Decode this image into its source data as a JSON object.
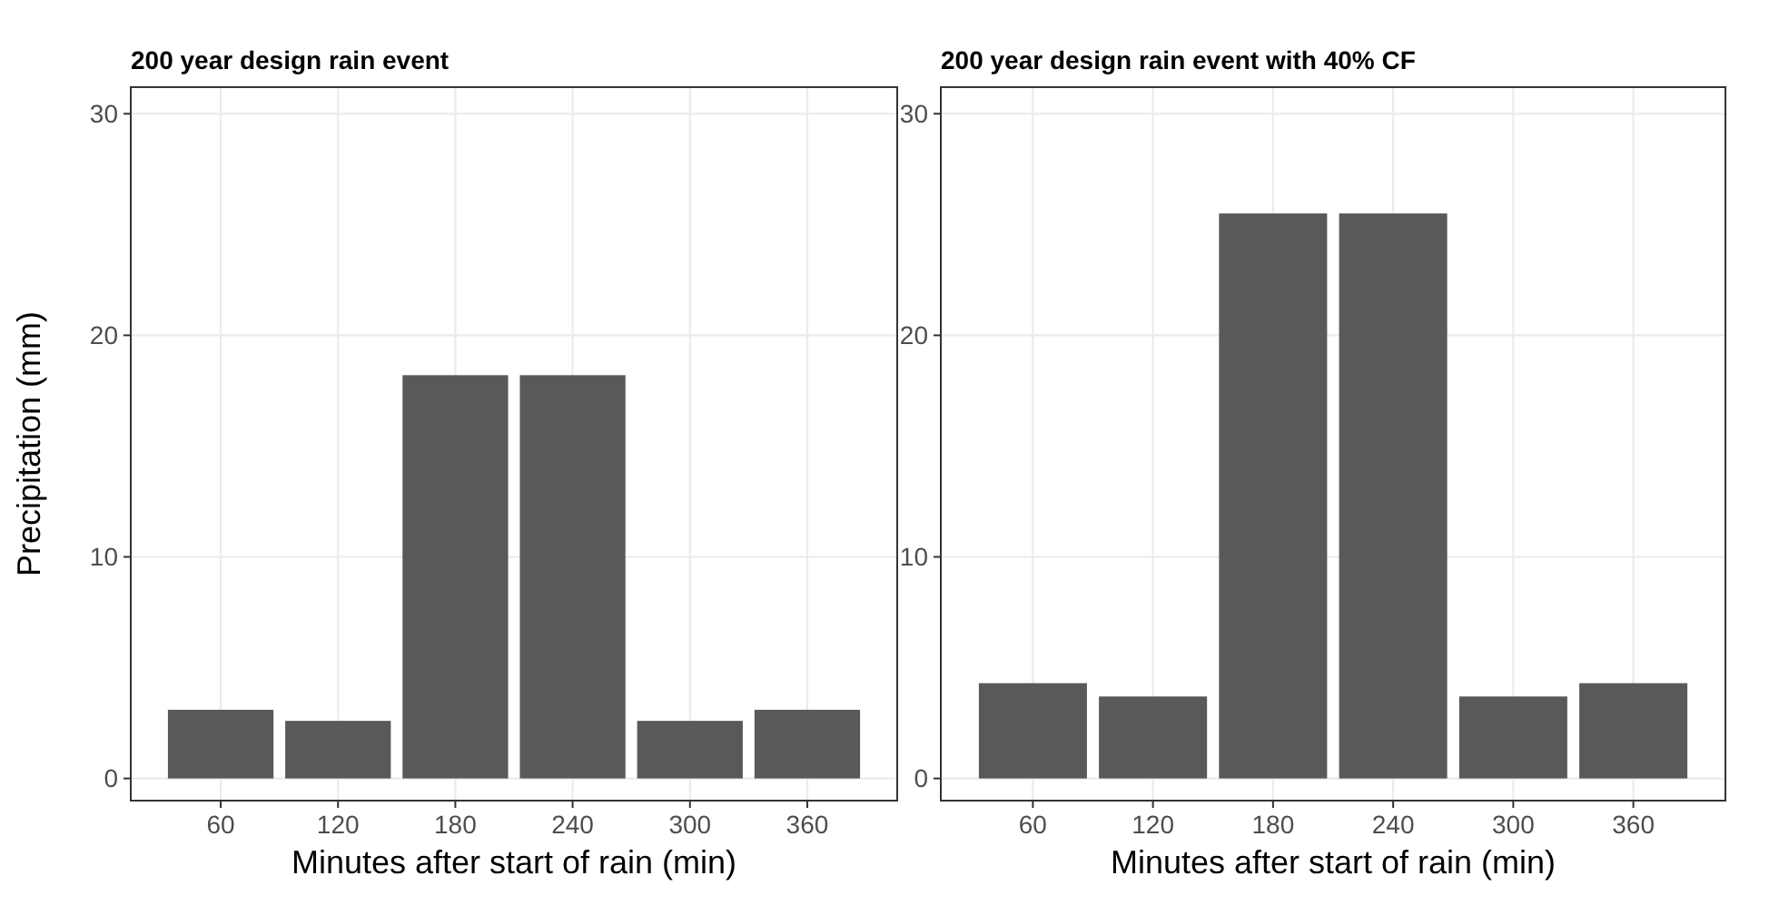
{
  "chart_data": [
    {
      "type": "bar",
      "title": "200 year design rain event",
      "xlabel": "Minutes after start of rain (min)",
      "ylabel": "Precipitation (mm)",
      "x": [
        60,
        120,
        180,
        240,
        300,
        360
      ],
      "values": [
        3.1,
        2.6,
        18.2,
        18.2,
        2.6,
        3.1
      ],
      "color": "#595959",
      "xlim": [
        14,
        406
      ],
      "xticks": [
        60,
        120,
        180,
        240,
        300,
        360
      ],
      "ylim": [
        -1,
        31.2
      ],
      "yticks": [
        0,
        10,
        20,
        30
      ],
      "grid": true
    },
    {
      "type": "bar",
      "title": "200 year design rain event with 40% CF",
      "xlabel": "Minutes after start of rain (min)",
      "x": [
        60,
        120,
        180,
        240,
        300,
        360
      ],
      "values": [
        4.3,
        3.7,
        25.5,
        25.5,
        3.7,
        4.3
      ],
      "color": "#595959",
      "xlim": [
        14,
        406
      ],
      "xticks": [
        60,
        120,
        180,
        240,
        300,
        360
      ],
      "ylim": [
        -1,
        31.2
      ],
      "yticks": [
        0,
        10,
        20,
        30
      ],
      "grid": true
    }
  ]
}
